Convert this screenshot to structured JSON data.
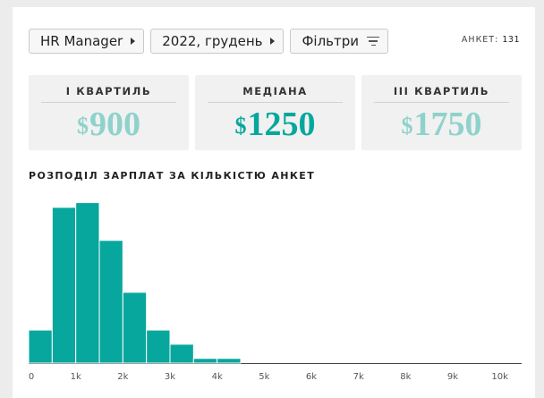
{
  "filters": [
    {
      "label": "HR Manager"
    },
    {
      "label": "2022, грудень"
    }
  ],
  "filter_button": {
    "label": "Фільтри",
    "icon": "filter-icon"
  },
  "responses": {
    "label": "АНКЕТ:",
    "value": "131"
  },
  "stats": [
    {
      "label": "I КВАРТИЛЬ",
      "currency": "$",
      "value": "900",
      "color": "#8ed2cb"
    },
    {
      "label": "МЕДІАНА",
      "currency": "$",
      "value": "1250",
      "color": "#06a79c"
    },
    {
      "label": "III КВАРТИЛЬ",
      "currency": "$",
      "value": "1750",
      "color": "#8ed2cb"
    }
  ],
  "chart_data": {
    "type": "bar",
    "title": "РОЗПОДІЛ ЗАРПЛАТ ЗА КІЛЬКІСТЮ АНКЕТ",
    "bin_width": 500,
    "bins_start": [
      0,
      500,
      1000,
      1500,
      2000,
      2500,
      3000,
      3500,
      4000
    ],
    "values": [
      7,
      33,
      34,
      26,
      15,
      7,
      4,
      1,
      1
    ],
    "xlim": [
      0,
      10500
    ],
    "ylim": [
      0,
      36
    ],
    "xticks": [
      0,
      1000,
      2000,
      3000,
      4000,
      5000,
      6000,
      7000,
      8000,
      9000,
      10000
    ],
    "xtick_labels": [
      "0",
      "1k",
      "2k",
      "3k",
      "4k",
      "5k",
      "6k",
      "7k",
      "8k",
      "9k",
      "10k"
    ],
    "grid": false,
    "color": "#08a79e"
  }
}
